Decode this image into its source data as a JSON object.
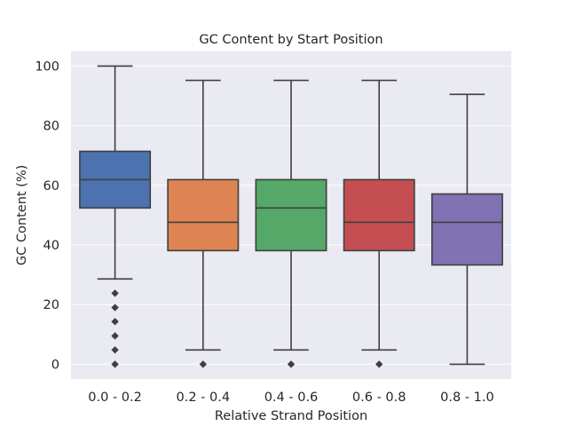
{
  "chart_data": {
    "type": "box",
    "title": "GC Content by Start Position",
    "xlabel": "Relative Strand Position",
    "ylabel": "GC Content (%)",
    "ylim": [
      -5,
      105
    ],
    "yticks": [
      0,
      20,
      40,
      60,
      80,
      100
    ],
    "grid": true,
    "legend": "none",
    "categories": [
      "0.0 - 0.2",
      "0.2 - 0.4",
      "0.4 - 0.6",
      "0.6 - 0.8",
      "0.8 - 1.0"
    ],
    "colors": [
      "#4c72b0",
      "#dd8452",
      "#55a868",
      "#c44e52",
      "#8172b3"
    ],
    "boxes": [
      {
        "whisker_low": 28.6,
        "q1": 52.4,
        "median": 61.9,
        "q3": 71.4,
        "whisker_high": 100,
        "outliers": [
          0,
          4.8,
          9.5,
          14.3,
          19.0,
          23.8
        ]
      },
      {
        "whisker_low": 4.8,
        "q1": 38.1,
        "median": 47.6,
        "q3": 61.9,
        "whisker_high": 95.2,
        "outliers": [
          0
        ]
      },
      {
        "whisker_low": 4.8,
        "q1": 38.1,
        "median": 52.4,
        "q3": 61.9,
        "whisker_high": 95.2,
        "outliers": [
          0
        ]
      },
      {
        "whisker_low": 4.8,
        "q1": 38.1,
        "median": 47.6,
        "q3": 61.9,
        "whisker_high": 95.2,
        "outliers": [
          0
        ]
      },
      {
        "whisker_low": 0,
        "q1": 33.3,
        "median": 47.6,
        "q3": 57.1,
        "whisker_high": 90.5,
        "outliers": []
      }
    ]
  }
}
